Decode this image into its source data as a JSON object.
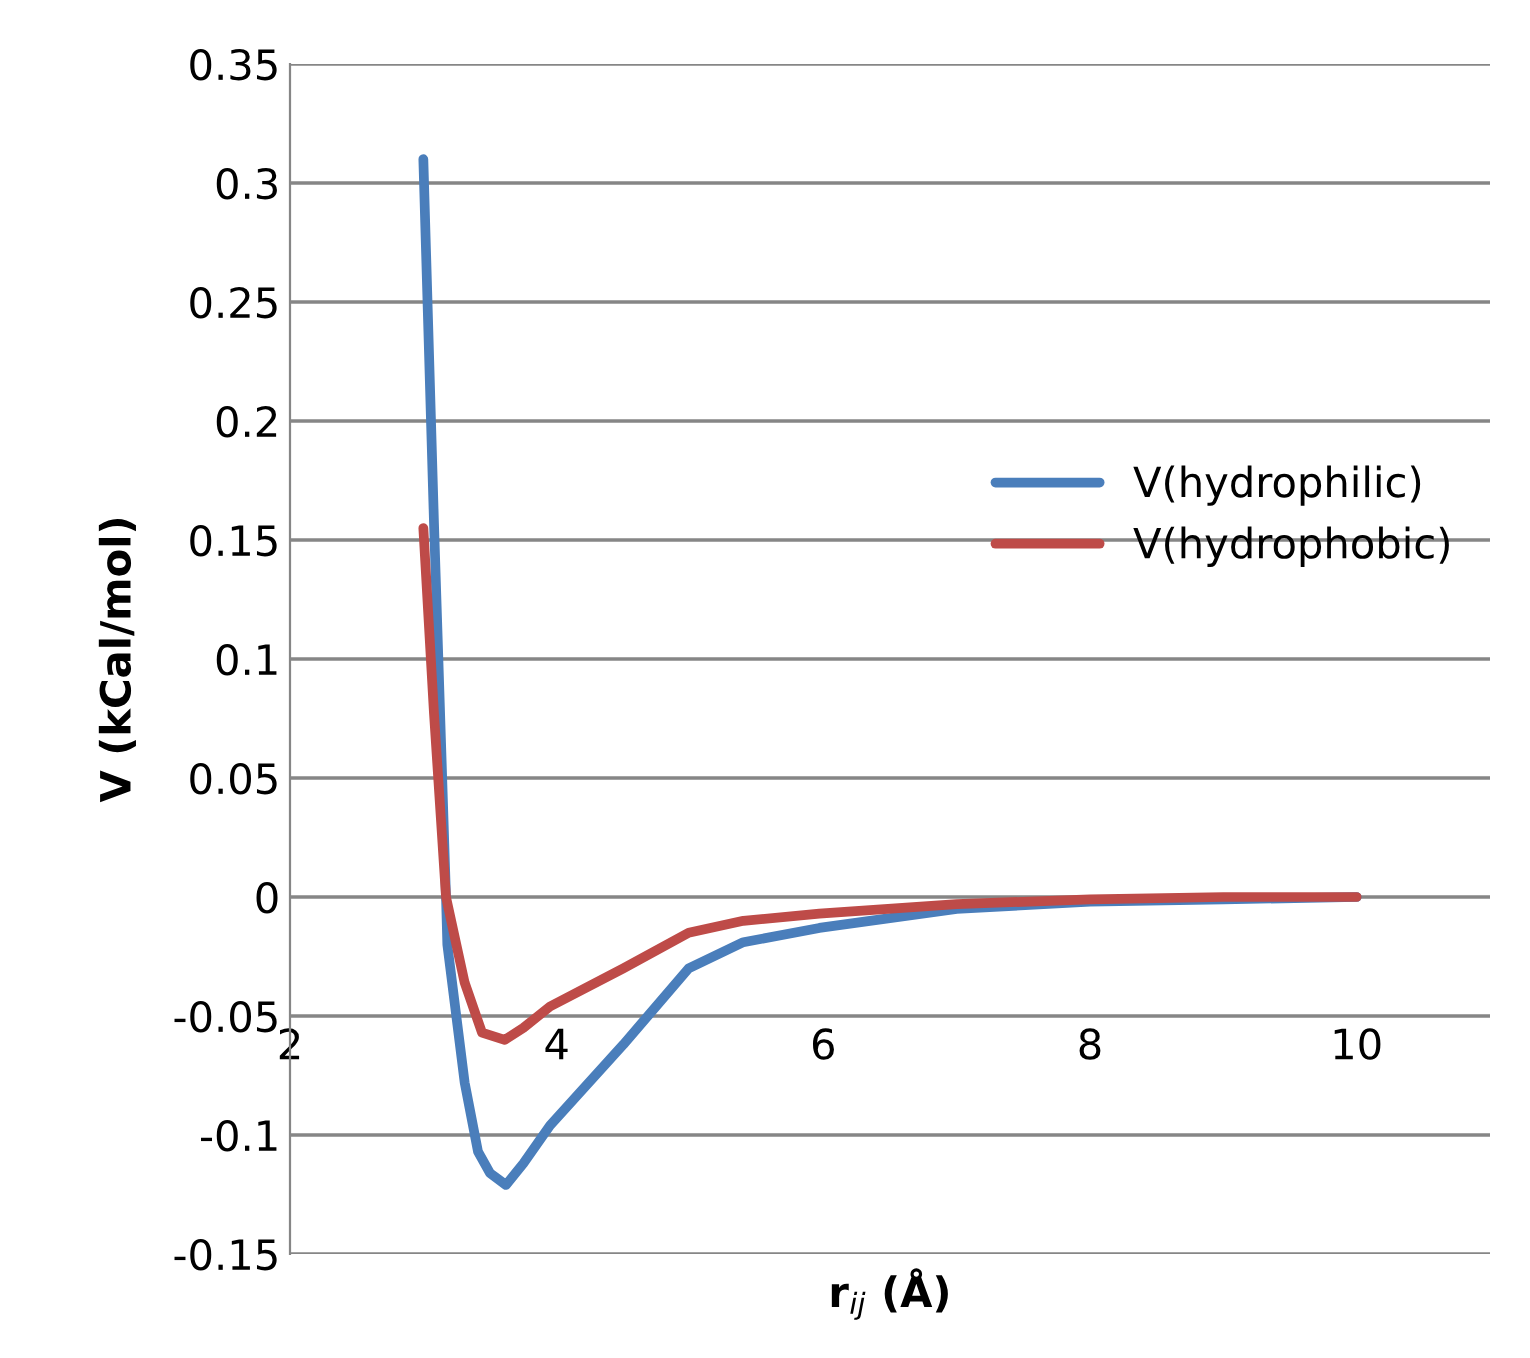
{
  "chart_data": {
    "type": "line",
    "xlabel": "r$_{ij}$ (Å)",
    "ylabel": "V (kCal/mol)",
    "xlim": [
      2,
      11
    ],
    "xticks": [
      2,
      4,
      6,
      8,
      10
    ],
    "ylim": [
      -0.15,
      0.35
    ],
    "yticks": [
      -0.15,
      -0.1,
      -0.05,
      0,
      0.05,
      0.1,
      0.15,
      0.2,
      0.25,
      0.3,
      0.35
    ],
    "grid": "y",
    "legend": "right",
    "marker": "none",
    "line_style": "solid",
    "series": [
      {
        "name": "V(hydrophilic)",
        "color": "#4a7ebb",
        "x": [
          3.0,
          3.08,
          3.17,
          3.18,
          3.31,
          3.41,
          3.5,
          3.62,
          3.75,
          3.95,
          4.5,
          4.99,
          5.4,
          5.97,
          7,
          8,
          9,
          10
        ],
        "values": [
          0.31,
          0.157,
          0.0,
          -0.02,
          -0.078,
          -0.107,
          -0.116,
          -0.121,
          -0.112,
          -0.096,
          -0.062,
          -0.03,
          -0.019,
          -0.013,
          -0.005,
          -0.002,
          -0.001,
          0.0
        ]
      },
      {
        "name": "V(hydrophobic)",
        "color": "#be4b48",
        "x": [
          3.0,
          3.08,
          3.17,
          3.31,
          3.44,
          3.61,
          3.75,
          3.95,
          4.5,
          4.99,
          5.4,
          5.97,
          7,
          8,
          9,
          10
        ],
        "values": [
          0.155,
          0.077,
          0.0,
          -0.036,
          -0.057,
          -0.06,
          -0.055,
          -0.046,
          -0.03,
          -0.015,
          -0.01,
          -0.007,
          -0.003,
          -0.001,
          0.0,
          0.0
        ]
      }
    ]
  }
}
